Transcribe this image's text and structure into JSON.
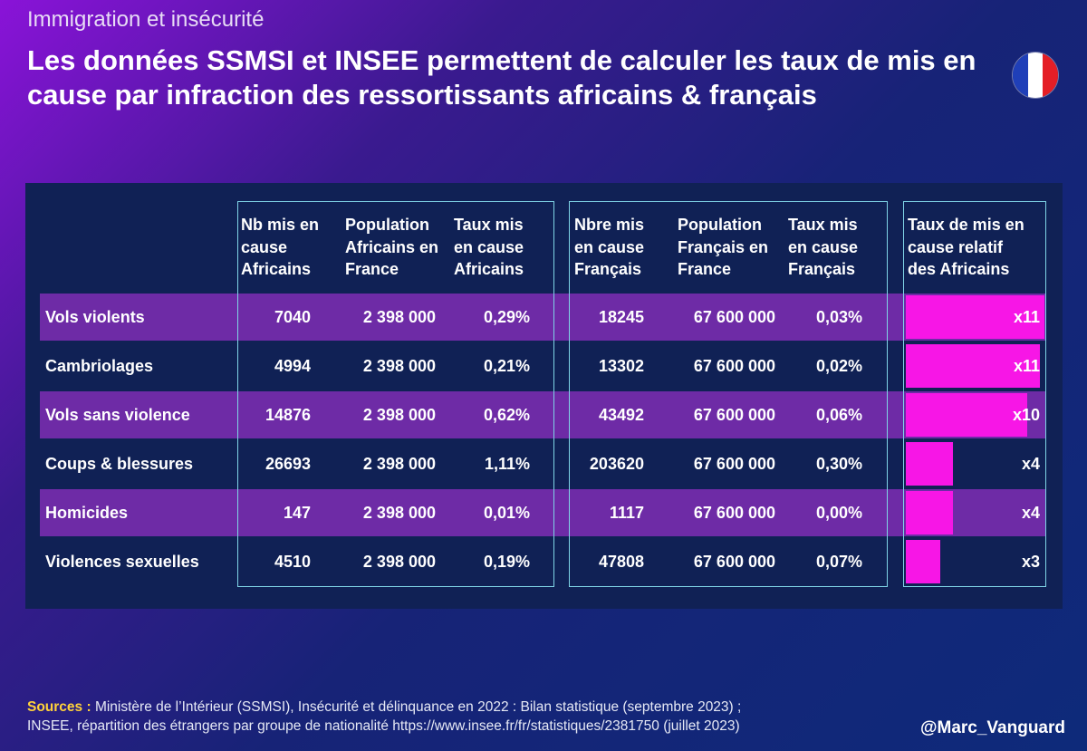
{
  "topic": "Immigration et insécurité",
  "title": "Les données SSMSI et INSEE permettent de calculer les taux de mis en cause par infraction des ressortissants africains & français",
  "flag_colors": [
    "#1f3fb8",
    "#ffffff",
    "#e41e26"
  ],
  "bar_color": "#f716e6",
  "band_color": "#6e2ba6",
  "headers": {
    "nb_africains": [
      "Nb mis en",
      "cause",
      "Africains"
    ],
    "pop_africains": [
      "Population",
      "Africains en",
      "France"
    ],
    "taux_africains": [
      "Taux mis",
      "en cause",
      "Africains"
    ],
    "nb_francais": [
      "Nbre mis",
      "en cause",
      "Français"
    ],
    "pop_francais": [
      "Population",
      "Français en",
      "France"
    ],
    "taux_francais": [
      "Taux mis",
      "en cause",
      "Français"
    ],
    "relatif": [
      "Taux de mis en",
      "cause relatif",
      "des Africains"
    ]
  },
  "chart_data": {
    "type": "table",
    "rows": [
      {
        "label": "Vols violents",
        "nb_africains": "7040",
        "pop_africains": "2 398 000",
        "taux_africains": "0,29%",
        "nb_francais": "18245",
        "pop_francais": "67 600 000",
        "taux_francais": "0,03%",
        "relatif_label": "x11",
        "relatif_value": 10.9
      },
      {
        "label": "Cambriolages",
        "nb_africains": "4994",
        "pop_africains": "2 398 000",
        "taux_africains": "0,21%",
        "nb_francais": "13302",
        "pop_francais": "67 600 000",
        "taux_francais": "0,02%",
        "relatif_label": "x11",
        "relatif_value": 10.6
      },
      {
        "label": "Vols sans violence",
        "nb_africains": "14876",
        "pop_africains": "2 398 000",
        "taux_africains": "0,62%",
        "nb_francais": "43492",
        "pop_francais": "67 600 000",
        "taux_francais": "0,06%",
        "relatif_label": "x10",
        "relatif_value": 9.6
      },
      {
        "label": "Coups & blessures",
        "nb_africains": "26693",
        "pop_africains": "2 398 000",
        "taux_africains": "1,11%",
        "nb_francais": "203620",
        "pop_francais": "67 600 000",
        "taux_francais": "0,30%",
        "relatif_label": "x4",
        "relatif_value": 3.7
      },
      {
        "label": "Homicides",
        "nb_africains": "147",
        "pop_africains": "2 398 000",
        "taux_africains": "0,01%",
        "nb_francais": "1117",
        "pop_francais": "67 600 000",
        "taux_francais": "0,00%",
        "relatif_label": "x4",
        "relatif_value": 3.7
      },
      {
        "label": "Violences sexuelles",
        "nb_africains": "4510",
        "pop_africains": "2 398 000",
        "taux_africains": "0,19%",
        "nb_francais": "47808",
        "pop_francais": "67 600 000",
        "taux_francais": "0,07%",
        "relatif_label": "x3",
        "relatif_value": 2.7
      }
    ],
    "relatif_max": 11
  },
  "sources": {
    "label": "Sources :",
    "line1": "Ministère de l’Intérieur (SSMSI), Insécurité et délinquance en 2022 : Bilan statistique (septembre 2023) ;",
    "line2": "INSEE, répartition des étrangers par groupe de nationalité https://www.insee.fr/fr/statistiques/2381750 (juillet 2023)"
  },
  "handle": "@Marc_Vanguard"
}
